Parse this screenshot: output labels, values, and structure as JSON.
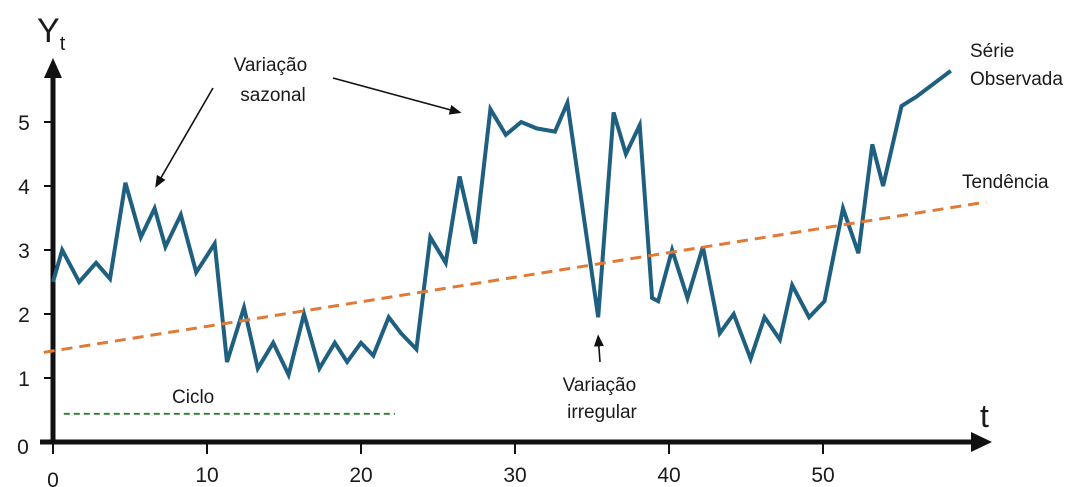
{
  "chart_data": {
    "type": "line",
    "title": "",
    "ylabel": "Y",
    "ylabel_sub": "t",
    "xlabel": "t",
    "xlim": [
      0,
      60
    ],
    "ylim": [
      0,
      6
    ],
    "x_ticks": [
      0,
      10,
      20,
      30,
      40,
      50
    ],
    "y_ticks": [
      0,
      1,
      2,
      3,
      4,
      5
    ],
    "grid": false,
    "series": [
      {
        "name": "Série Observada",
        "color": "#1f5f80",
        "x": [
          0,
          0.6,
          1.7,
          2.8,
          3.7,
          4.7,
          5.7,
          6.6,
          7.3,
          8.3,
          9.3,
          10.5,
          11.3,
          12.4,
          13.3,
          14.3,
          15.3,
          16.3,
          17.3,
          18.3,
          19.1,
          20,
          20.8,
          21.8,
          22.6,
          23.6,
          24.5,
          25.5,
          26.4,
          27.4,
          28.4,
          29.4,
          30.4,
          31.4,
          32.6,
          33.4,
          35.4,
          36.4,
          37.2,
          38.1,
          38.9,
          39.3,
          40.2,
          41.2,
          42.2,
          43.3,
          44.2,
          45.3,
          46.2,
          47.2,
          48,
          49.1,
          50.1,
          51.3,
          52.3,
          53.2,
          53.9,
          55.1,
          56.1,
          58.3
        ],
        "y": [
          2.5,
          3.0,
          2.5,
          2.8,
          2.55,
          4.05,
          3.2,
          3.65,
          3.05,
          3.55,
          2.65,
          3.1,
          1.25,
          2.1,
          1.15,
          1.55,
          1.05,
          2.0,
          1.15,
          1.55,
          1.25,
          1.55,
          1.35,
          1.95,
          1.7,
          1.45,
          3.2,
          2.8,
          4.15,
          3.1,
          5.2,
          4.8,
          5.0,
          4.9,
          4.85,
          5.3,
          1.95,
          5.15,
          4.5,
          4.95,
          2.25,
          2.2,
          3.0,
          2.25,
          3.05,
          1.7,
          2.0,
          1.3,
          1.95,
          1.6,
          2.45,
          1.95,
          2.2,
          3.65,
          2.95,
          4.65,
          4.0,
          5.25,
          5.4,
          5.8
        ]
      },
      {
        "name": "Tendência",
        "color": "#e07a36",
        "style": "dashed",
        "x": [
          -0.6,
          60.6
        ],
        "y": [
          1.4,
          3.75
        ]
      },
      {
        "name": "Ciclo",
        "color": "#2e7d32",
        "style": "dashed",
        "x": [
          0.7,
          22.2
        ],
        "y": [
          0.44,
          0.44
        ]
      }
    ],
    "annotations": {
      "sazonal": [
        "Variação",
        "sazonal"
      ],
      "irregular": [
        "Variação",
        "irregular"
      ],
      "observada": [
        "Série",
        "Observada"
      ],
      "tendencia": "Tendência",
      "ciclo": "Ciclo"
    },
    "annotation_targets": {
      "sazonal_arrow_1": [
        6.7,
        4.0
      ],
      "sazonal_arrow_2": [
        26.4,
        5.15
      ],
      "irregular_arrow": [
        35.4,
        1.65
      ]
    }
  }
}
